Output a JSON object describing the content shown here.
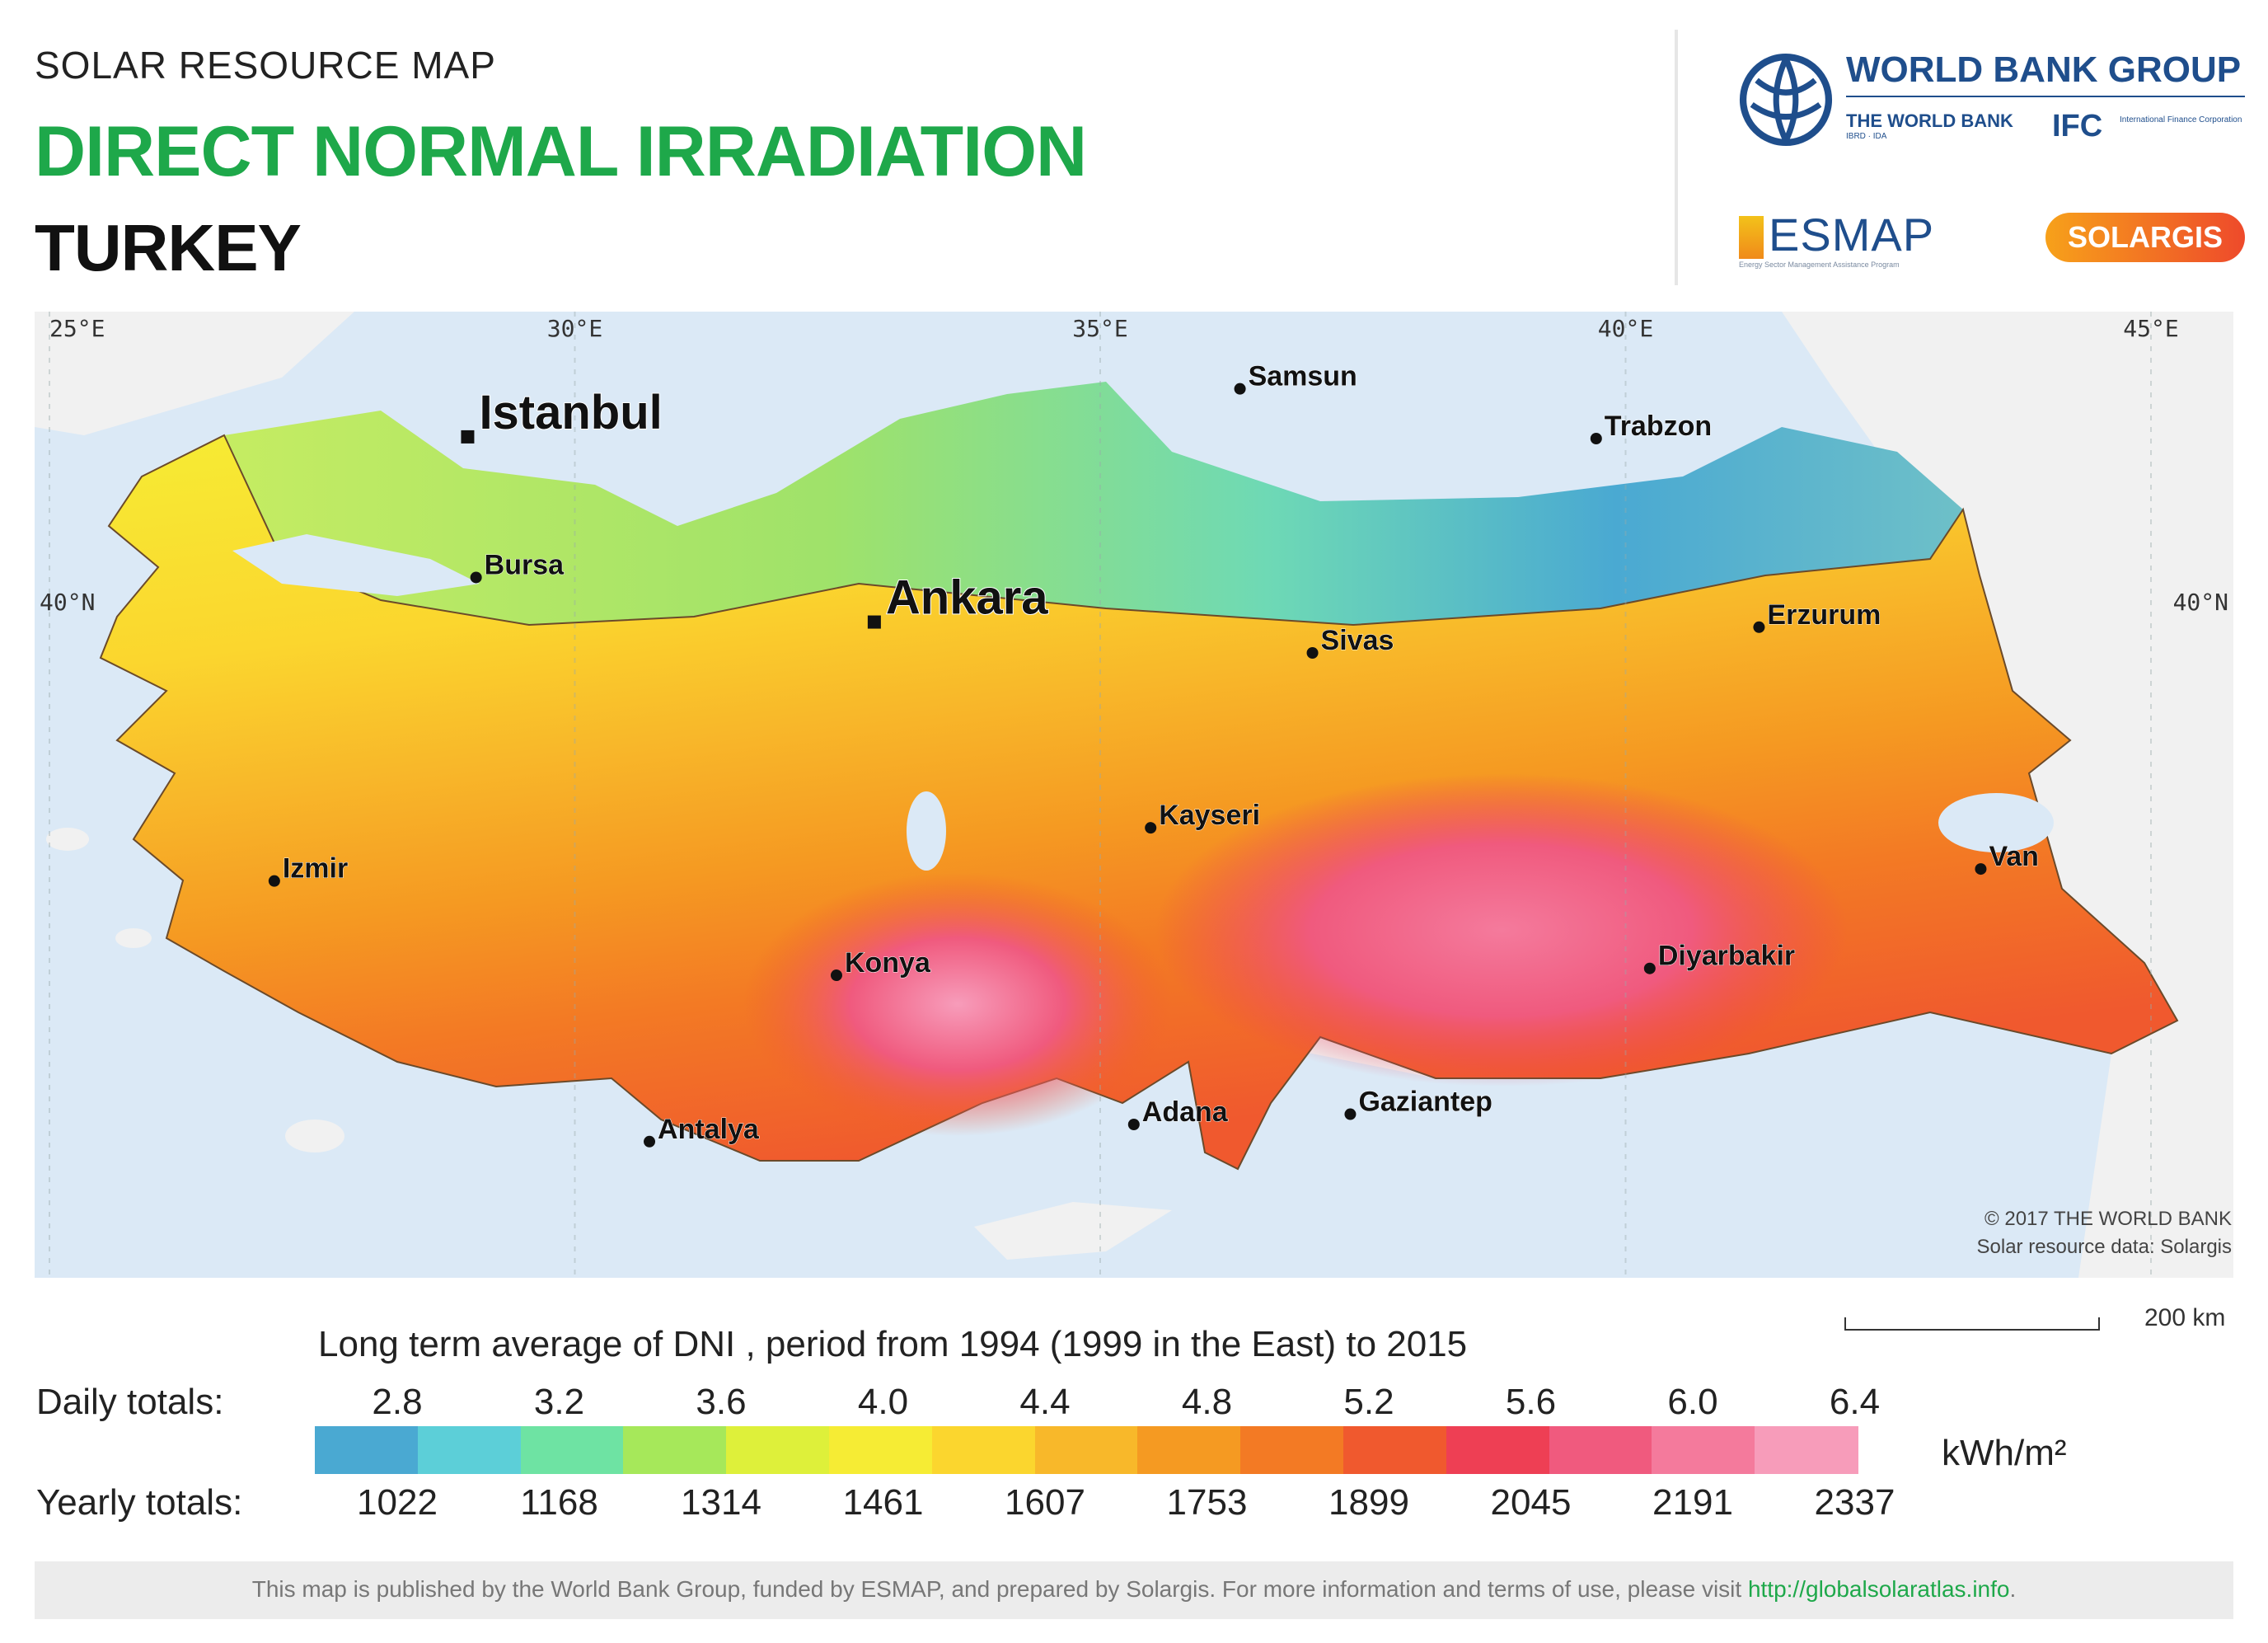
{
  "header": {
    "kicker": "SOLAR RESOURCE MAP",
    "title": "DIRECT NORMAL IRRADIATION",
    "country": "TURKEY"
  },
  "logos": {
    "world_bank_group": "WORLD BANK GROUP",
    "the_world_bank": "THE WORLD BANK",
    "the_world_bank_sub": "IBRD · IDA",
    "ifc": "IFC",
    "ifc_sub": "International Finance Corporation",
    "esmap": "ESMAP",
    "esmap_sub": "Energy Sector Management Assistance Program",
    "solargis": "SOLARGIS",
    "colors": {
      "world_bank_blue": "#1f4e8c",
      "title_green": "#1ea84a",
      "solargis_orange": "#f7a11a",
      "solargis_red": "#ee4a2b"
    }
  },
  "map": {
    "longitude_ticks": [
      {
        "label": "25°E",
        "value": 25
      },
      {
        "label": "30°E",
        "value": 30
      },
      {
        "label": "35°E",
        "value": 35
      },
      {
        "label": "40°E",
        "value": 40
      },
      {
        "label": "45°E",
        "value": 45
      }
    ],
    "latitude_ticks": [
      {
        "label": "40°N",
        "value": 40
      }
    ],
    "cities": [
      {
        "name": "Istanbul",
        "lon": 28.98,
        "lat": 41.01,
        "major": true
      },
      {
        "name": "Ankara",
        "lon": 32.85,
        "lat": 39.93,
        "major": true
      },
      {
        "name": "Samsun",
        "lon": 36.33,
        "lat": 41.29,
        "major": false
      },
      {
        "name": "Trabzon",
        "lon": 39.72,
        "lat": 41.0,
        "major": false
      },
      {
        "name": "Bursa",
        "lon": 29.06,
        "lat": 40.19,
        "major": false
      },
      {
        "name": "Erzurum",
        "lon": 41.27,
        "lat": 39.9,
        "major": false
      },
      {
        "name": "Sivas",
        "lon": 37.02,
        "lat": 39.75,
        "major": false
      },
      {
        "name": "Izmir",
        "lon": 27.14,
        "lat": 38.42,
        "major": false
      },
      {
        "name": "Kayseri",
        "lon": 35.48,
        "lat": 38.73,
        "major": false
      },
      {
        "name": "Van",
        "lon": 43.38,
        "lat": 38.49,
        "major": false
      },
      {
        "name": "Konya",
        "lon": 32.49,
        "lat": 37.87,
        "major": false
      },
      {
        "name": "Diyarbakir",
        "lon": 40.23,
        "lat": 37.91,
        "major": false
      },
      {
        "name": "Antalya",
        "lon": 30.71,
        "lat": 36.9,
        "major": false
      },
      {
        "name": "Adana",
        "lon": 35.32,
        "lat": 37.0,
        "major": false
      },
      {
        "name": "Gaziantep",
        "lon": 37.38,
        "lat": 37.06,
        "major": false
      }
    ],
    "copyright_line1": "© 2017 THE WORLD BANK",
    "copyright_line2": "Solar resource data: Solargis",
    "scale_label": "200 km",
    "colors": {
      "sea": "#dbe9f6",
      "land_outside": "#f1f1f1",
      "border": "#555555"
    }
  },
  "legend": {
    "title": "Long term average of DNI , period from 1994 (1999 in the East) to 2015",
    "daily_label": "Daily totals:",
    "yearly_label": "Yearly totals:",
    "unit": "kWh/m²",
    "daily_values": [
      "2.8",
      "3.2",
      "3.6",
      "4.0",
      "4.4",
      "4.8",
      "5.2",
      "5.6",
      "6.0",
      "6.4"
    ],
    "yearly_values": [
      "1022",
      "1168",
      "1314",
      "1461",
      "1607",
      "1753",
      "1899",
      "2045",
      "2191",
      "2337"
    ],
    "colors": [
      "#4aa9d2",
      "#5ccfd8",
      "#6ee3a3",
      "#a6e85a",
      "#def03a",
      "#f6ec34",
      "#fbd62e",
      "#f8b82a",
      "#f59a22",
      "#f37a24",
      "#f0592e",
      "#ee3f54",
      "#f05a7e",
      "#f47a9c",
      "#f79cba"
    ]
  },
  "footer": {
    "text": "This map is published by the World Bank Group, funded by ESMAP, and prepared by Solargis. For more information and terms of use, please visit ",
    "link": "http://globalsolaratlas.info",
    "end": "."
  }
}
